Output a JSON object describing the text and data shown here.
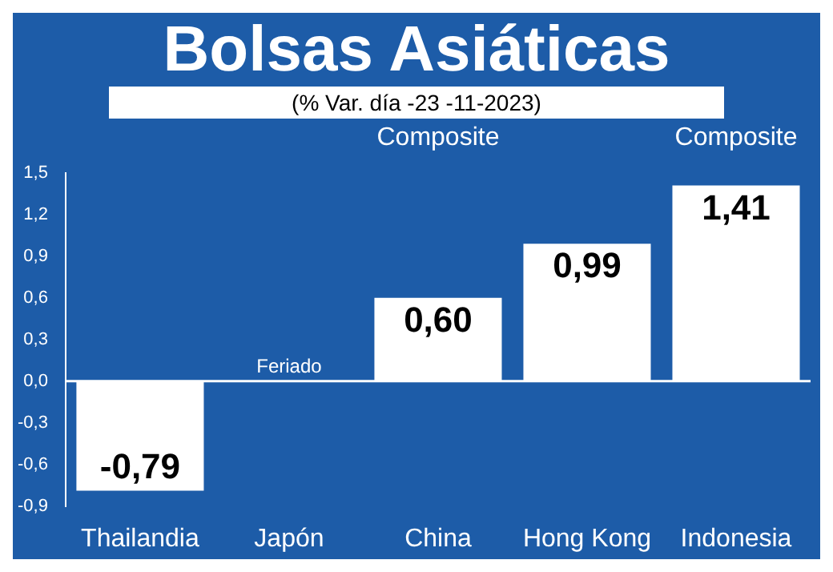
{
  "chart_data": {
    "type": "bar",
    "title": "Bolsas Asiáticas",
    "subtitle": "(% Var. día -23 -11-2023)",
    "categories": [
      "Thailandia",
      "Japón",
      "China",
      "Hong Kong",
      "Indonesia"
    ],
    "values": [
      -0.79,
      null,
      0.6,
      0.99,
      1.41
    ],
    "value_labels": [
      "-0,79",
      null,
      "0,60",
      "0,99",
      "1,41"
    ],
    "color": "#ffffff",
    "ylim": [
      -0.9,
      1.5
    ],
    "yticks": [
      {
        "value": -0.9,
        "label": "-0,9"
      },
      {
        "value": -0.6,
        "label": "-0,6"
      },
      {
        "value": -0.3,
        "label": "-0,3"
      },
      {
        "value": 0,
        "label": "0,0"
      },
      {
        "value": 0.3,
        "label": "0,3"
      },
      {
        "value": 0.6,
        "label": "0,6"
      },
      {
        "value": 0.9,
        "label": "0,9"
      },
      {
        "value": 1.2,
        "label": "1,2"
      },
      {
        "value": 1.5,
        "label": "1,5"
      }
    ],
    "grid": false,
    "ref_lines": [
      {
        "axis": "y",
        "value": 0,
        "color": "#ffffff"
      }
    ],
    "legend": false,
    "annotations": [
      "Feriado",
      "Composite",
      "Composite"
    ]
  }
}
